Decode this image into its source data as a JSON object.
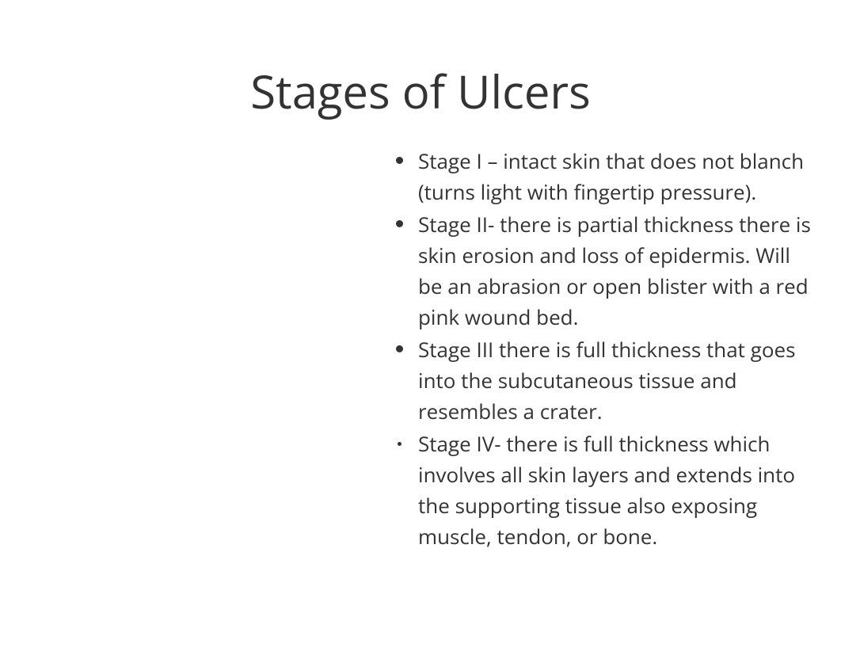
{
  "slide": {
    "title": "Stages of Ulcers",
    "title_fontsize": 58,
    "title_color": "#333333",
    "background_color": "#ffffff",
    "text_color": "#333333",
    "body_fontsize": 26,
    "bullets": [
      {
        "text": "Stage I – intact skin that does not blanch (turns light with fingertip pressure).",
        "bullet_style": "normal"
      },
      {
        "text": "Stage II- there is partial thickness there is skin erosion and loss of epidermis. Will be an abrasion or open blister with a red pink wound bed.",
        "bullet_style": "normal"
      },
      {
        "text": "Stage III there is full thickness that goes into the subcutaneous tissue and resembles a crater.",
        "bullet_style": "normal"
      },
      {
        "text": "Stage IV- there is full thickness which involves all skin layers and extends into the supporting tissue also exposing muscle, tendon, or bone.",
        "bullet_style": "small"
      }
    ]
  }
}
